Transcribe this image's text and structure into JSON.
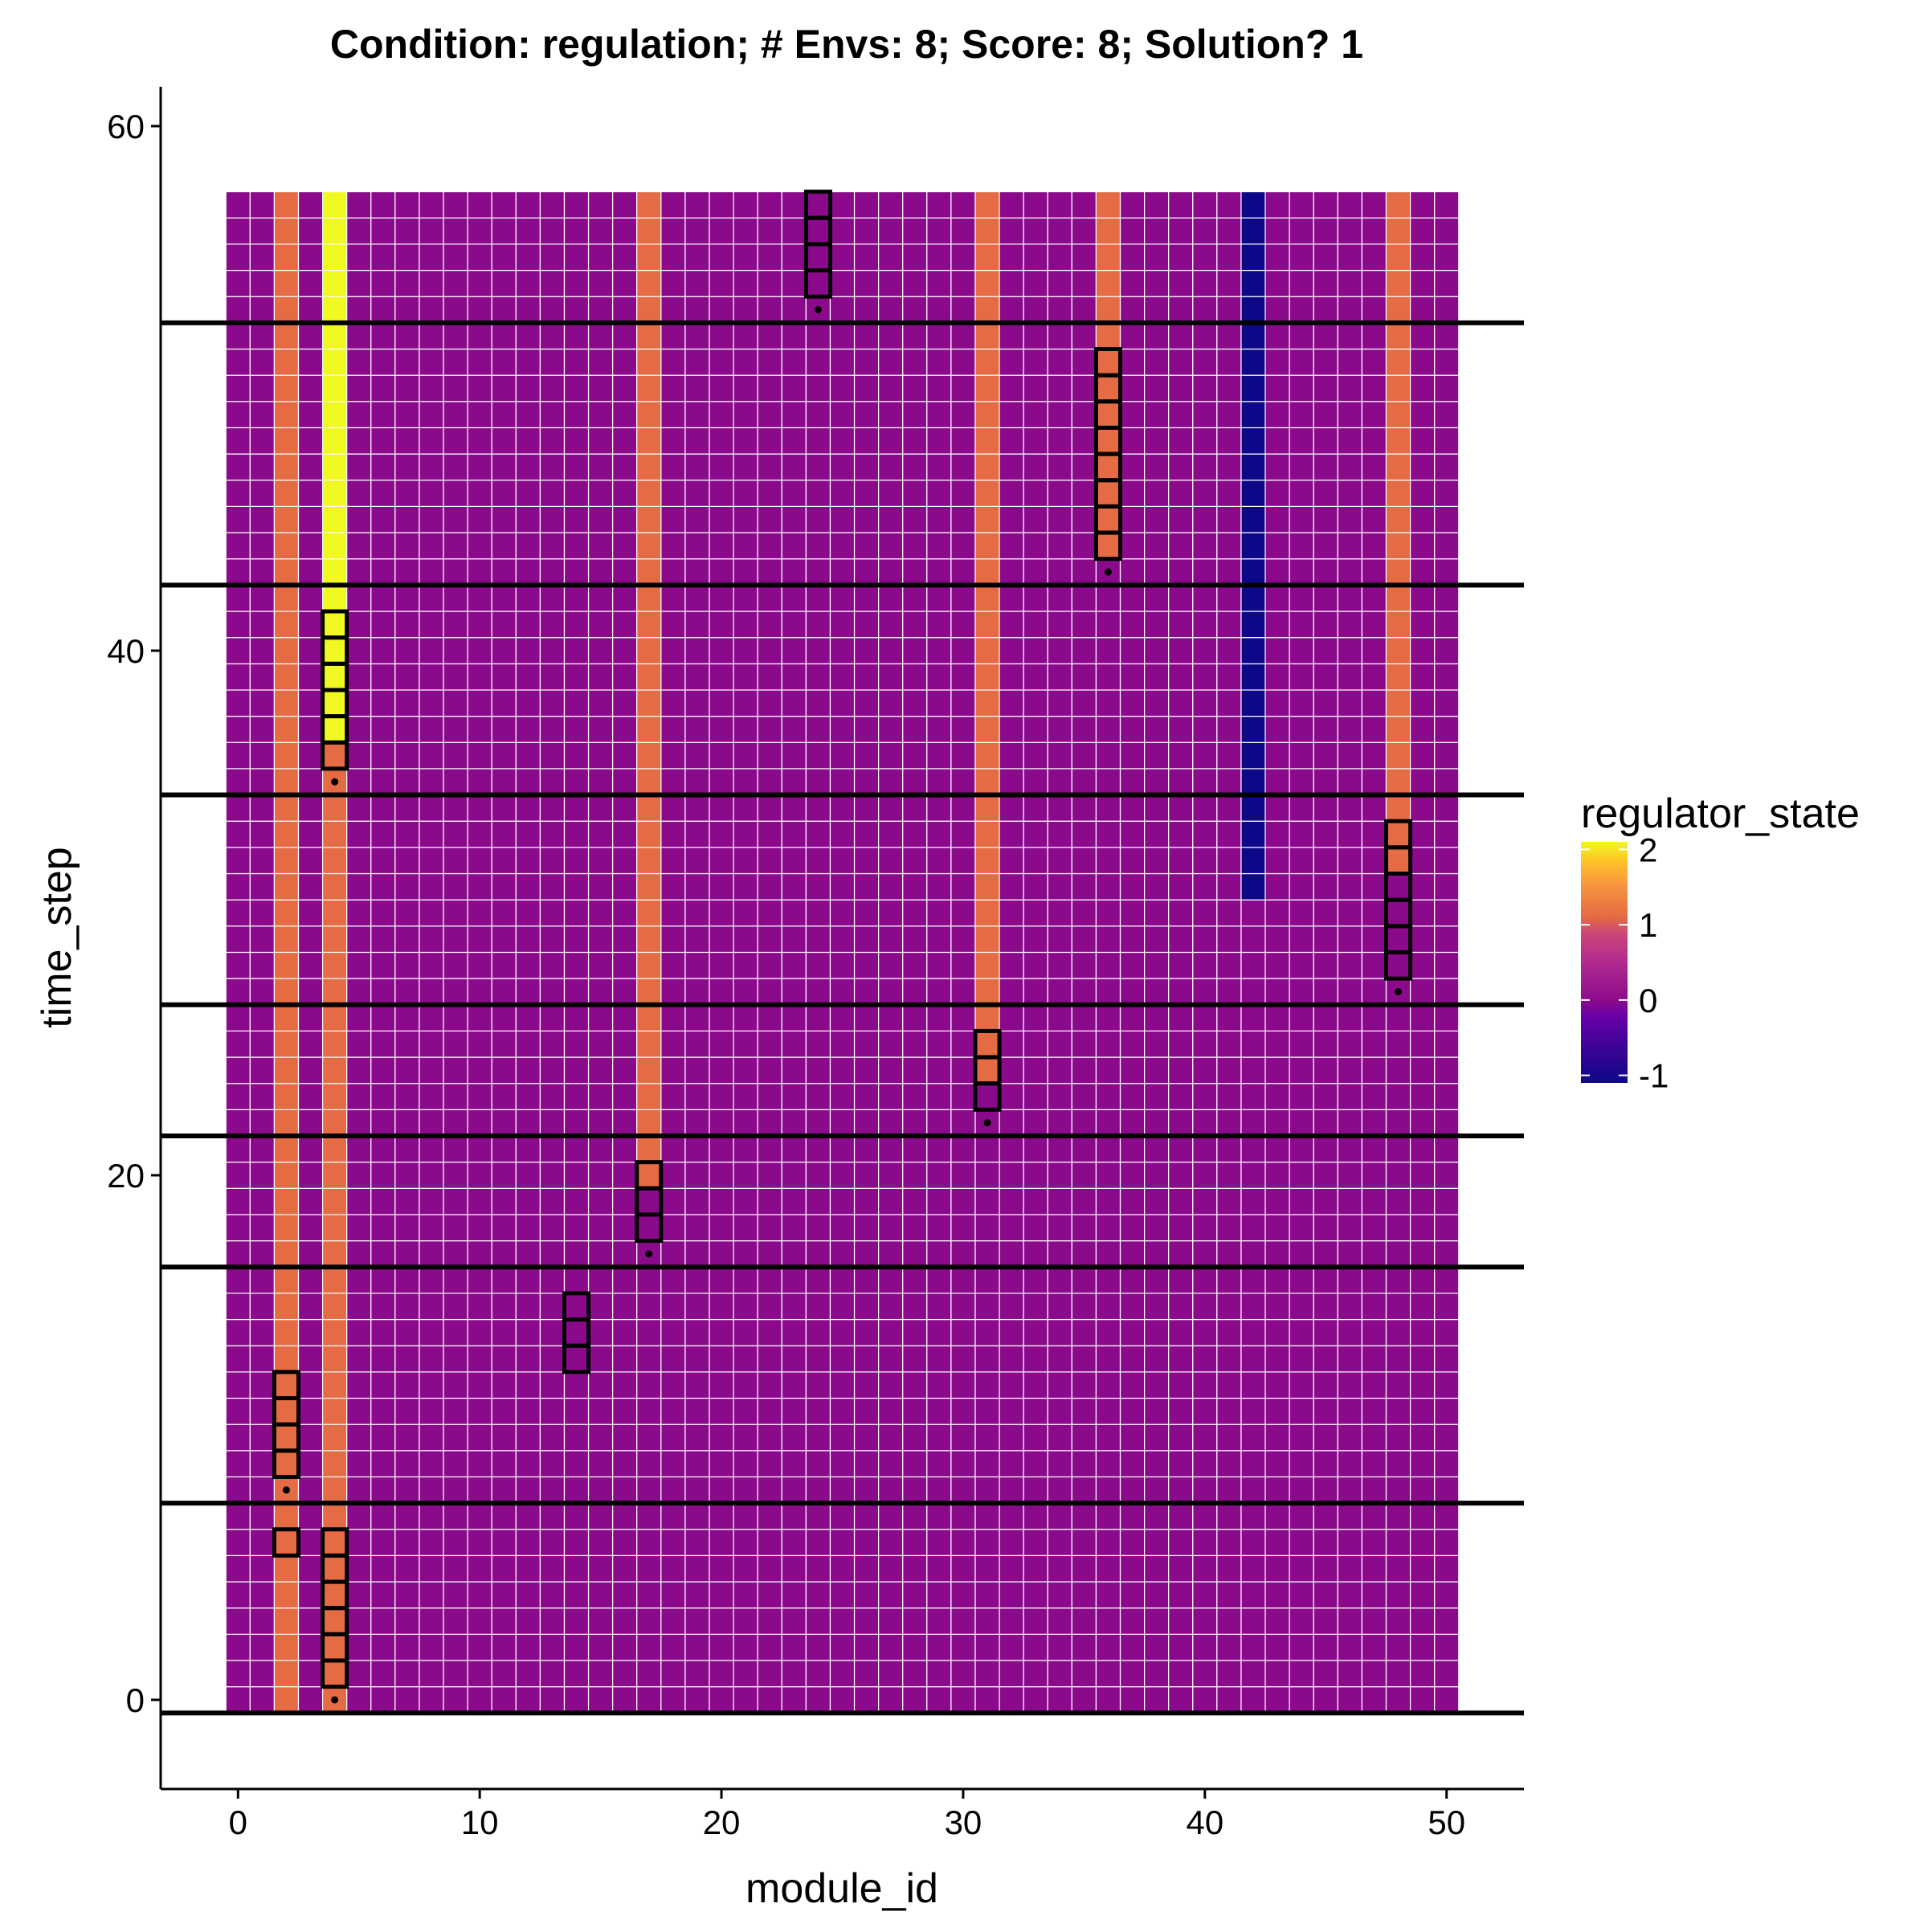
{
  "chart_data": {
    "type": "heatmap",
    "title": "Condition: regulation; # Envs: 8; Score: 8; Solution? 1",
    "xlabel": "module_id",
    "ylabel": "time_step",
    "xlim": [
      -3.2,
      53.2
    ],
    "ylim": [
      -3.4,
      61.5
    ],
    "x_ticks": [
      0,
      10,
      20,
      30,
      40,
      50
    ],
    "y_ticks": [
      0,
      20,
      40,
      60
    ],
    "grid": false,
    "grid_x_range": [
      0,
      50
    ],
    "grid_y_range": [
      0,
      57
    ],
    "base_value": 0,
    "column_overrides": [
      {
        "module_id": 2,
        "value": 1,
        "from_step": 0,
        "to_step": 57
      },
      {
        "module_id": 4,
        "value": 1,
        "from_step": 0,
        "to_step": 57
      },
      {
        "module_id": 4,
        "value": 2,
        "from_step": 37,
        "to_step": 57
      },
      {
        "module_id": 17,
        "value": 1,
        "from_step": 20,
        "to_step": 57
      },
      {
        "module_id": 31,
        "value": 1,
        "from_step": 24,
        "to_step": 57
      },
      {
        "module_id": 36,
        "value": 1,
        "from_step": 44,
        "to_step": 57
      },
      {
        "module_id": 42,
        "value": -1,
        "from_step": 31,
        "to_step": 57
      },
      {
        "module_id": 48,
        "value": 1,
        "from_step": 32,
        "to_step": 57
      }
    ],
    "environment_boundaries": [
      -0.5,
      7.5,
      16.5,
      21.5,
      26.5,
      34.5,
      42.5,
      52.5
    ],
    "highlighted_runs": [
      {
        "module_id": 4,
        "from_step": 1,
        "to_step": 6,
        "dot_step": 0
      },
      {
        "module_id": 2,
        "from_step": 6,
        "to_step": 6
      },
      {
        "module_id": 2,
        "from_step": 9,
        "to_step": 12,
        "dot_step": 8
      },
      {
        "module_id": 14,
        "from_step": 13,
        "to_step": 15
      },
      {
        "module_id": 17,
        "from_step": 18,
        "to_step": 20,
        "dot_step": 17
      },
      {
        "module_id": 31,
        "from_step": 23,
        "to_step": 25,
        "dot_step": 22
      },
      {
        "module_id": 48,
        "from_step": 28,
        "to_step": 33,
        "dot_step": 27
      },
      {
        "module_id": 4,
        "from_step": 36,
        "to_step": 41,
        "dot_step": 35
      },
      {
        "module_id": 36,
        "from_step": 44,
        "to_step": 51,
        "dot_step": 43
      },
      {
        "module_id": 24,
        "from_step": 54,
        "to_step": 57,
        "dot_step": 53
      }
    ],
    "legend": {
      "title": "regulator_state",
      "placement": "right",
      "ticks": [
        2,
        1,
        0,
        -1
      ],
      "min": -1.1,
      "max": 2.1
    },
    "colors": {
      "minus1": "#0d0887",
      "zero": "#8b0a8b",
      "one": "#e46b43",
      "two": "#f0f921",
      "grid_line": "#ffffff",
      "outline": "#000000"
    }
  }
}
